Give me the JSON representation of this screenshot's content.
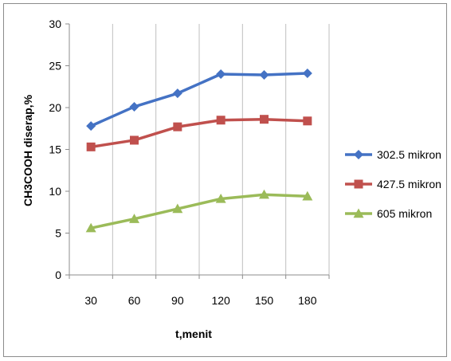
{
  "chart_data": {
    "type": "line",
    "x": [
      30,
      60,
      90,
      120,
      150,
      180
    ],
    "categories": [
      "30",
      "60",
      "90",
      "120",
      "150",
      "180"
    ],
    "series": [
      {
        "name": "302.5 mikron",
        "values": [
          17.8,
          20.1,
          21.7,
          24.0,
          23.9,
          24.1
        ],
        "color": "#4472C4",
        "marker": "diamond"
      },
      {
        "name": "427.5 mikron",
        "values": [
          15.3,
          16.1,
          17.7,
          18.5,
          18.6,
          18.4
        ],
        "color": "#C0504D",
        "marker": "square"
      },
      {
        "name": "605 mikron",
        "values": [
          5.6,
          6.7,
          7.9,
          9.1,
          9.6,
          9.4
        ],
        "color": "#9BBB59",
        "marker": "triangle"
      }
    ],
    "xlabel": "t,menit",
    "ylabel": "CH3COOH diserap,%",
    "ylim": [
      0,
      30
    ],
    "yticks": [
      0,
      5,
      10,
      15,
      20,
      25,
      30
    ],
    "grid": "vertical",
    "legend_position": "right"
  }
}
